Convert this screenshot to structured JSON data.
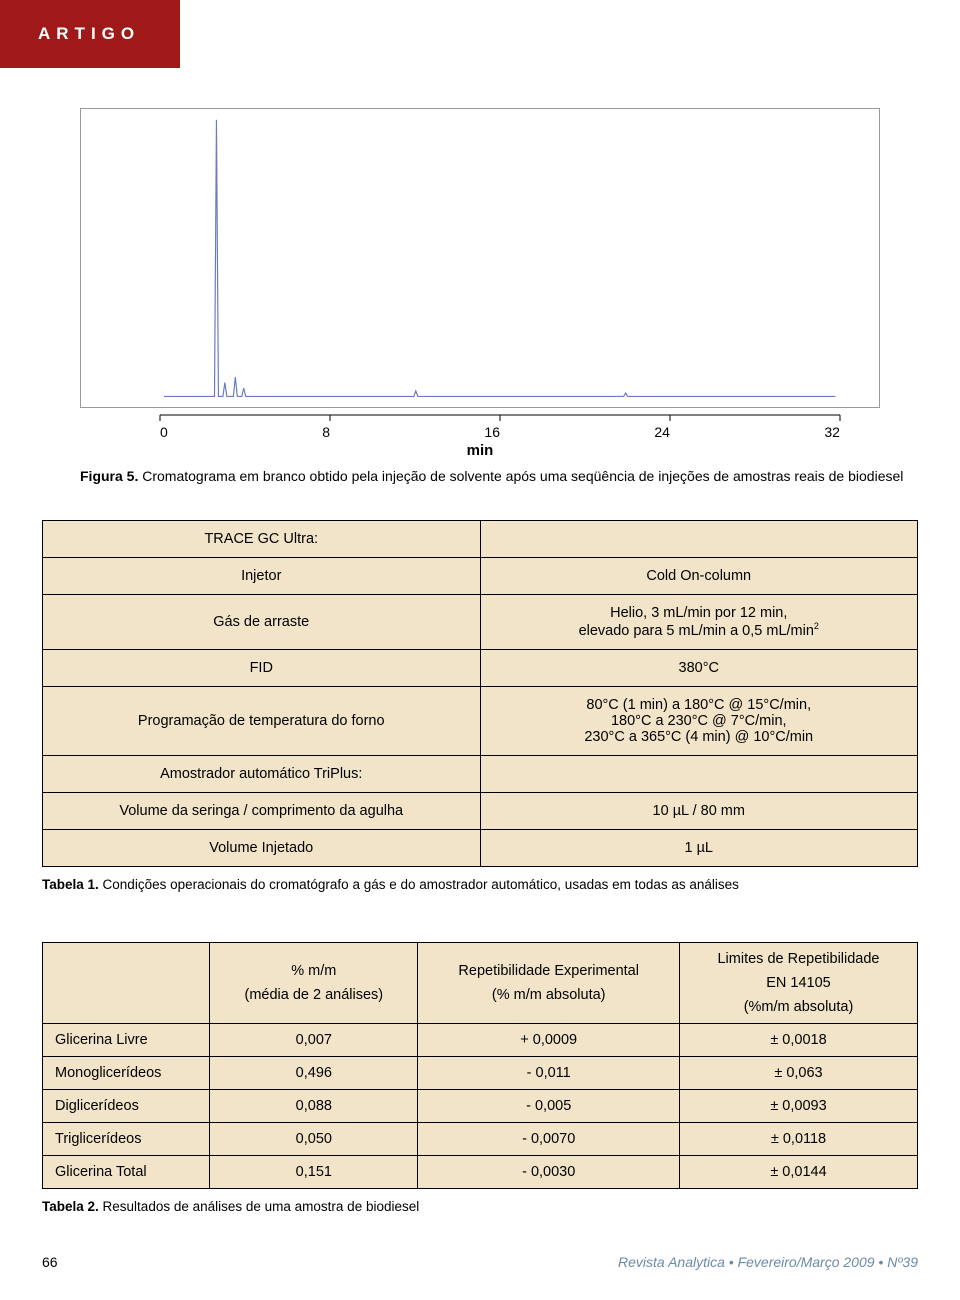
{
  "header": {
    "label": "ARTIGO"
  },
  "chart": {
    "type": "line",
    "x_ticks": [
      "0",
      "8",
      "16",
      "24",
      "32"
    ],
    "x_label": "min",
    "xlim": [
      0,
      32
    ],
    "line_color": "#6a7bc4",
    "axis_color": "#333333",
    "background": "#ffffff",
    "peaks": [
      {
        "x": 2.5,
        "height": 1.0
      },
      {
        "x": 2.9,
        "height": 0.05
      },
      {
        "x": 3.4,
        "height": 0.07
      },
      {
        "x": 3.8,
        "height": 0.03
      },
      {
        "x": 12.0,
        "height": 0.02
      },
      {
        "x": 22.0,
        "height": 0.012
      }
    ],
    "baseline": 0.98
  },
  "figure_caption": {
    "label": "Figura 5.",
    "text": "Cromatograma em branco obtido pela injeção de solvente após uma seqüência de injeções de amostras reais de biodiesel"
  },
  "table1": {
    "rows": [
      {
        "left": "TRACE GC Ultra:",
        "right": ""
      },
      {
        "left": "Injetor",
        "right": "Cold On-column"
      },
      {
        "left": "Gás de arraste",
        "right": "Helio, 3 mL/min por 12 min,\nelevado para 5 mL/min a 0,5 mL/min²"
      },
      {
        "left": "FID",
        "right": "380°C"
      },
      {
        "left": "Programação de temperatura do forno",
        "right": "80°C (1 min) a 180°C @ 15°C/min,\n180°C a 230°C @ 7°C/min,\n230°C a 365°C (4 min) @ 10°C/min"
      },
      {
        "left": "Amostrador automático TriPlus:",
        "right": ""
      },
      {
        "left": "Volume da seringa / comprimento da agulha",
        "right": "10 µL / 80 mm"
      },
      {
        "left": "Volume Injetado",
        "right": "1 µL"
      }
    ],
    "caption_label": "Tabela 1.",
    "caption_text": "Condições operacionais do cromatógrafo a gás e do amostrador automático, usadas em todas as análises"
  },
  "table2": {
    "header": {
      "col1": "",
      "col2_a": "% m/m",
      "col2_b": "(média de 2 análises)",
      "col3_a": "Repetibilidade Experimental",
      "col3_b": "(% m/m absoluta)",
      "col4_a": "Limites de Repetibilidade",
      "col4_b": "EN 14105",
      "col4_c": "(%m/m absoluta)"
    },
    "rows": [
      {
        "label": "Glicerina Livre",
        "pct": "0,007",
        "rep": "+ 0,0009",
        "lim": "± 0,0018"
      },
      {
        "label": "Monoglicerídeos",
        "pct": "0,496",
        "rep": "- 0,011",
        "lim": "± 0,063"
      },
      {
        "label": "Diglicerídeos",
        "pct": "0,088",
        "rep": "- 0,005",
        "lim": "± 0,0093"
      },
      {
        "label": "Triglicerídeos",
        "pct": "0,050",
        "rep": "- 0,0070",
        "lim": "± 0,0118"
      },
      {
        "label": "Glicerina Total",
        "pct": "0,151",
        "rep": "- 0,0030",
        "lim": "± 0,0144"
      }
    ],
    "caption_label": "Tabela 2.",
    "caption_text": "Resultados de análises de uma amostra de biodiesel"
  },
  "footer": {
    "page": "66",
    "publication": "Revista Analytica",
    "issue": " • Fevereiro/Março 2009 • Nº39"
  }
}
